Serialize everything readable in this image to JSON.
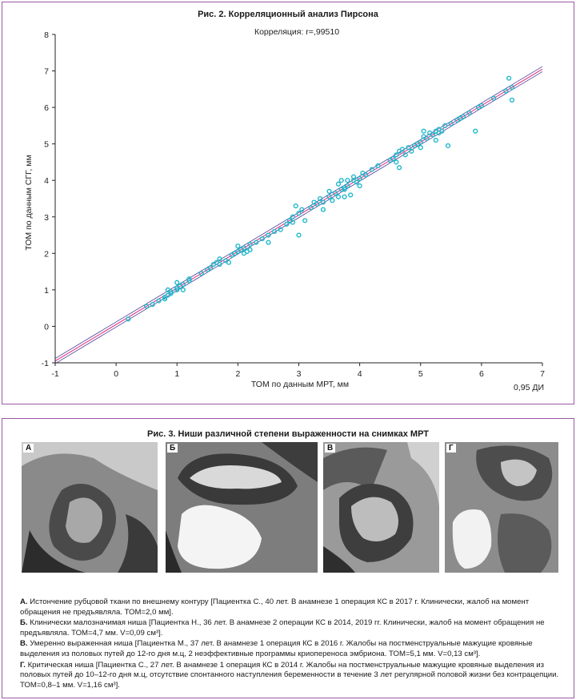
{
  "figure2": {
    "title": "Рис. 2. Корреляционный анализ Пирсона",
    "chart_data": {
      "type": "scatter",
      "title": "Рис. 2. Корреляционный анализ Пирсона",
      "annotation": "Корреляция: r=,99510",
      "xlabel": "ТОМ по данным МРТ, мм",
      "ylabel": "ТОМ по данным СГГ, мм",
      "ci_label": "0,95 ДИ",
      "xlim": [
        -1,
        7
      ],
      "ylim": [
        -1,
        8
      ],
      "xticks": [
        "-1",
        "0",
        "1",
        "2",
        "3",
        "4",
        "5",
        "6",
        "7"
      ],
      "yticks": [
        "-1",
        "0",
        "1",
        "2",
        "3",
        "4",
        "5",
        "6",
        "7",
        "8"
      ],
      "regression": {
        "slope": 1.0,
        "intercept": 0.05
      },
      "colors": {
        "points": "#1fb8c9",
        "regression": "#e0297a",
        "ci": "#4a3f9b"
      },
      "points": [
        [
          0.2,
          0.2
        ],
        [
          0.5,
          0.55
        ],
        [
          0.6,
          0.6
        ],
        [
          0.7,
          0.7
        ],
        [
          0.8,
          0.75
        ],
        [
          0.8,
          0.8
        ],
        [
          0.85,
          0.85
        ],
        [
          0.9,
          0.9
        ],
        [
          0.85,
          1.0
        ],
        [
          0.9,
          0.95
        ],
        [
          1.0,
          1.0
        ],
        [
          1.0,
          1.05
        ],
        [
          1.05,
          1.1
        ],
        [
          1.1,
          1.0
        ],
        [
          1.1,
          1.15
        ],
        [
          1.2,
          1.25
        ],
        [
          1.2,
          1.3
        ],
        [
          1.0,
          1.2
        ],
        [
          1.4,
          1.45
        ],
        [
          1.5,
          1.55
        ],
        [
          1.55,
          1.6
        ],
        [
          1.6,
          1.7
        ],
        [
          1.65,
          1.75
        ],
        [
          1.7,
          1.7
        ],
        [
          1.7,
          1.85
        ],
        [
          1.8,
          1.8
        ],
        [
          1.85,
          1.75
        ],
        [
          1.9,
          1.95
        ],
        [
          1.95,
          2.0
        ],
        [
          2.0,
          2.05
        ],
        [
          2.0,
          2.2
        ],
        [
          2.05,
          2.1
        ],
        [
          2.1,
          2.0
        ],
        [
          2.1,
          2.15
        ],
        [
          2.15,
          2.05
        ],
        [
          2.2,
          2.1
        ],
        [
          2.2,
          2.25
        ],
        [
          2.3,
          2.3
        ],
        [
          2.4,
          2.4
        ],
        [
          2.5,
          2.5
        ],
        [
          2.5,
          2.3
        ],
        [
          2.6,
          2.6
        ],
        [
          2.7,
          2.65
        ],
        [
          2.8,
          2.8
        ],
        [
          2.85,
          2.9
        ],
        [
          2.9,
          2.85
        ],
        [
          2.9,
          3.0
        ],
        [
          2.95,
          3.3
        ],
        [
          3.0,
          3.1
        ],
        [
          3.0,
          2.5
        ],
        [
          3.05,
          3.2
        ],
        [
          3.1,
          2.9
        ],
        [
          3.2,
          3.25
        ],
        [
          3.25,
          3.4
        ],
        [
          3.3,
          3.35
        ],
        [
          3.35,
          3.5
        ],
        [
          3.4,
          3.4
        ],
        [
          3.4,
          3.2
        ],
        [
          3.5,
          3.55
        ],
        [
          3.5,
          3.7
        ],
        [
          3.55,
          3.45
        ],
        [
          3.6,
          3.65
        ],
        [
          3.65,
          3.9
        ],
        [
          3.7,
          3.75
        ],
        [
          3.7,
          4.0
        ],
        [
          3.75,
          3.8
        ],
        [
          3.75,
          3.55
        ],
        [
          3.8,
          3.85
        ],
        [
          3.8,
          4.0
        ],
        [
          3.85,
          3.6
        ],
        [
          3.9,
          4.0
        ],
        [
          3.9,
          4.1
        ],
        [
          3.95,
          3.95
        ],
        [
          4.0,
          4.05
        ],
        [
          4.0,
          3.85
        ],
        [
          4.05,
          4.2
        ],
        [
          4.1,
          4.15
        ],
        [
          4.2,
          4.3
        ],
        [
          4.3,
          4.4
        ],
        [
          4.5,
          4.55
        ],
        [
          4.55,
          4.6
        ],
        [
          4.6,
          4.5
        ],
        [
          4.6,
          4.7
        ],
        [
          4.65,
          4.8
        ],
        [
          4.7,
          4.85
        ],
        [
          4.75,
          4.7
        ],
        [
          4.8,
          4.9
        ],
        [
          4.85,
          4.8
        ],
        [
          4.9,
          4.95
        ],
        [
          4.95,
          5.0
        ],
        [
          5.0,
          5.05
        ],
        [
          5.0,
          4.9
        ],
        [
          5.05,
          5.2
        ],
        [
          5.1,
          5.15
        ],
        [
          5.15,
          5.3
        ],
        [
          5.2,
          5.25
        ],
        [
          5.25,
          5.1
        ],
        [
          5.3,
          5.4
        ],
        [
          5.35,
          5.35
        ],
        [
          5.4,
          5.5
        ],
        [
          5.45,
          4.95
        ],
        [
          5.5,
          5.55
        ],
        [
          5.6,
          5.65
        ],
        [
          5.65,
          5.7
        ],
        [
          5.7,
          5.75
        ],
        [
          5.8,
          5.85
        ],
        [
          5.9,
          5.35
        ],
        [
          5.95,
          6.0
        ],
        [
          6.0,
          6.05
        ],
        [
          6.2,
          6.25
        ],
        [
          6.4,
          6.45
        ],
        [
          6.5,
          6.55
        ],
        [
          6.5,
          6.2
        ],
        [
          6.45,
          6.8
        ],
        [
          4.65,
          4.35
        ],
        [
          5.25,
          5.35
        ],
        [
          5.3,
          5.3
        ],
        [
          5.05,
          5.35
        ],
        [
          3.65,
          3.55
        ],
        [
          3.75,
          3.75
        ]
      ]
    }
  },
  "figure3": {
    "title": "Рис. 3. Ниши различной степени выраженности на снимках МРТ",
    "panels": [
      {
        "label": "А"
      },
      {
        "label": "Б"
      },
      {
        "label": "В"
      },
      {
        "label": "Г"
      }
    ],
    "captions": [
      {
        "key": "А.",
        "text": " Истончение рубцовой ткани по внешнему контуру [Пациентка С., 40 лет. В анамнезе 1 операция КС в 2017 г. Клинически, жалоб на момент обращения не предъявляла. ТОМ=2,0 мм]."
      },
      {
        "key": "Б.",
        "text": " Клинически малозначимая ниша [Пациентка Н., 36 лет. В анамнезе 2 операции КС в 2014, 2019 гг. Клинически, жалоб на момент обращения не предъявляла. ТОМ=4,7 мм. V=0,09 см³]."
      },
      {
        "key": "В.",
        "text": " Умеренно выраженная ниша [Пациентка М., 37 лет. В анамнезе 1 операция КС в 2016 г. Жалобы на постменструальные мажущие кровяные выделения из половых путей до 12-го дня м.ц, 2 неэффективные программы криопереноса эмбриона. ТОМ=5,1 мм. V=0,13 см³]."
      },
      {
        "key": "Г.",
        "text": " Критическая ниша [Пациентка С., 27 лет. В анамнезе 1 операция КС в 2014 г. Жалобы на постменструальные мажущие кровяные выделения из половых путей до 10–12-го дня м.ц, отсутствие спонтанного наступления беременности в течение 3 лет регулярной половой жизни без контрацепции. ТОМ=0,8–1 мм. V=1,16 см³]."
      }
    ]
  }
}
